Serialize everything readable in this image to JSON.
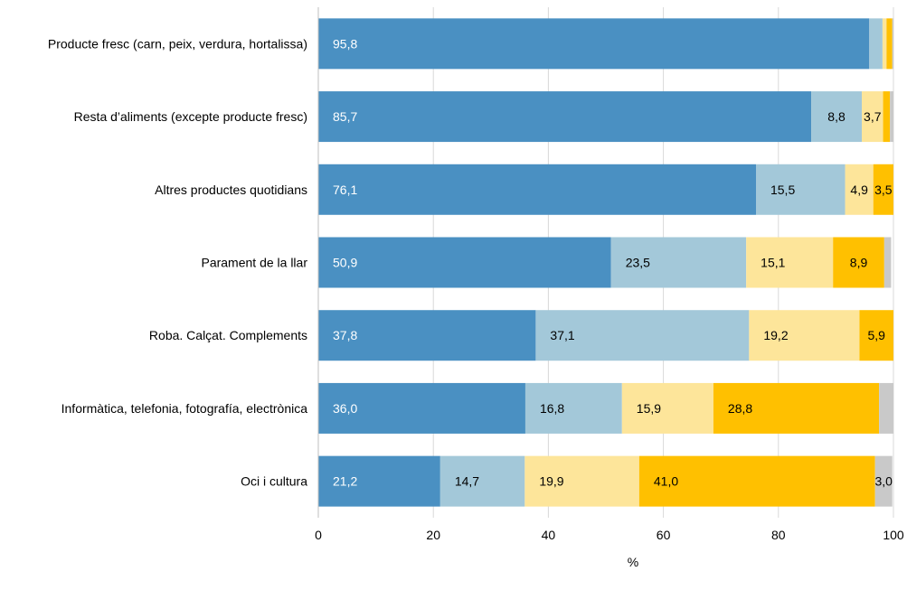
{
  "chart_data": {
    "type": "bar",
    "orientation": "horizontal",
    "stacked": true,
    "categories": [
      "Producte fresc (carn, peix, verdura, hortalissa)",
      "Resta d’aliments (excepte producte fresc)",
      "Altres productes quotidians",
      "Parament de la llar",
      "Roba. Calçat. Complements",
      "Informàtica, telefonia, fotografía, electrònica",
      "Oci i cultura"
    ],
    "series": [
      {
        "color": "#4a90c2",
        "label_color": "#ffffff",
        "values": [
          95.8,
          85.7,
          76.1,
          50.9,
          37.8,
          36.0,
          21.2
        ],
        "labels": [
          "95,8",
          "85,7",
          "76,1",
          "50,9",
          "37,8",
          "36,0",
          "21,2"
        ]
      },
      {
        "color": "#a3c8d9",
        "label_color": "#000000",
        "values": [
          2.3,
          8.8,
          15.5,
          23.5,
          37.1,
          16.8,
          14.7
        ],
        "labels": [
          "",
          "8,8",
          "15,5",
          "23,5",
          "37,1",
          "16,8",
          "14,7"
        ]
      },
      {
        "color": "#fde59a",
        "label_color": "#000000",
        "values": [
          0.7,
          3.7,
          4.9,
          15.1,
          19.2,
          15.9,
          19.9
        ],
        "labels": [
          "",
          "3,7",
          "4,9",
          "15,1",
          "19,2",
          "15,9",
          "19,9"
        ]
      },
      {
        "color": "#ffc000",
        "label_color": "#000000",
        "values": [
          1.0,
          1.2,
          3.5,
          8.9,
          5.9,
          28.8,
          41.0
        ],
        "labels": [
          "",
          "",
          "3,5",
          "8,9",
          "5,9",
          "28,8",
          "41,0"
        ]
      },
      {
        "color": "#c9c9c9",
        "label_color": "#000000",
        "values": [
          0.2,
          0.6,
          0.0,
          1.2,
          0.0,
          2.5,
          3.0
        ],
        "labels": [
          "",
          "",
          "",
          "",
          "",
          "",
          "3,0"
        ]
      }
    ],
    "xlim": [
      0,
      100
    ],
    "xticks": [
      0,
      20,
      40,
      60,
      80,
      100
    ],
    "xticklabels": [
      "0",
      "20",
      "40",
      "60",
      "80",
      "100"
    ],
    "xlabel": "%",
    "grid": true,
    "legend": false
  }
}
